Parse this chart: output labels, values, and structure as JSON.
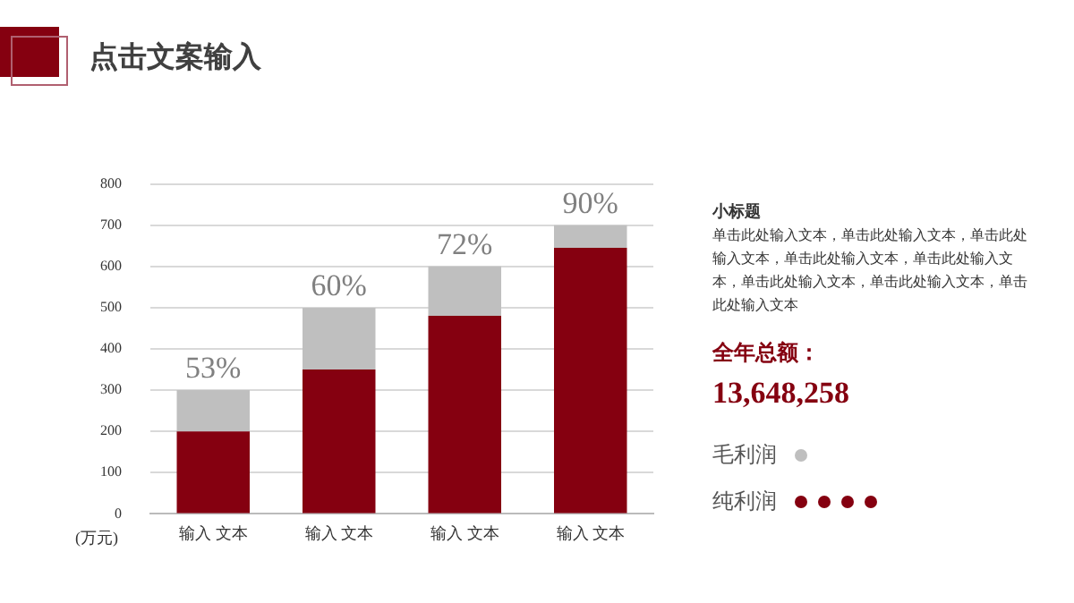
{
  "chart_data": {
    "type": "bar",
    "title": "点击文案输入",
    "ylabel": "(万元)",
    "stacked": true,
    "categories": [
      "输入 文本",
      "输入 文本",
      "输入 文本",
      "输入 文本"
    ],
    "series": [
      {
        "name": "纯利润",
        "color": "#850010",
        "values": [
          200,
          350,
          480,
          645
        ]
      },
      {
        "name": "毛利润",
        "color": "#bfbfbf",
        "values": [
          100,
          150,
          120,
          55
        ]
      }
    ],
    "ylim": [
      0,
      800
    ],
    "yticks": [
      0,
      100,
      200,
      300,
      400,
      500,
      600,
      700,
      800
    ],
    "grid": "y",
    "legend": "right",
    "annotations": [
      {
        "text": "53%",
        "y": 300
      },
      {
        "text": "60%",
        "y": 500
      },
      {
        "text": "72%",
        "y": 600
      },
      {
        "text": "90%",
        "y": 700
      },
      "小标题",
      "单击此处输入文本，单击此处输入文本，单击此处输入文本，单击此处输入文本，单击此处输入文本，单击此处输入文本，单击此处输入文本，单击此处输入文本",
      "全年总额：",
      "13,648,258"
    ]
  }
}
